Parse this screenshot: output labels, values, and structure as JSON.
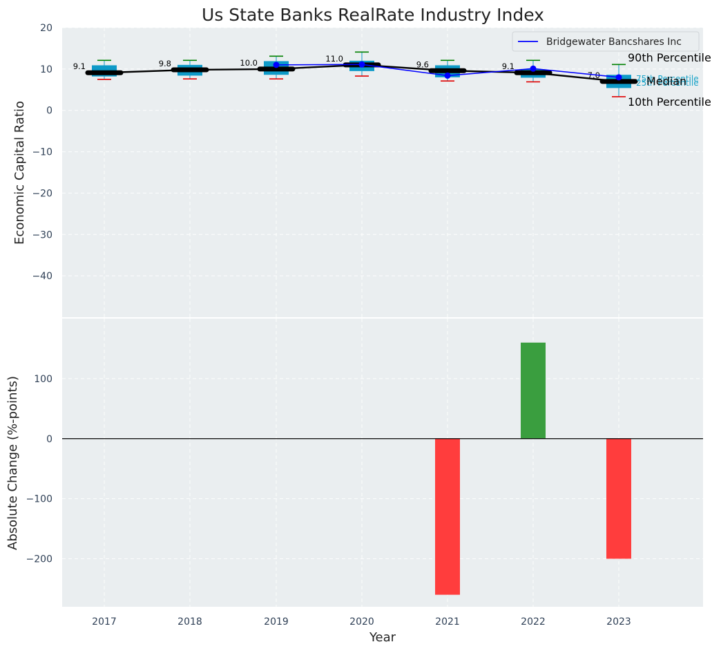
{
  "chart_data": {
    "type": "box-and-bar",
    "title": "Us State Banks RealRate Industry Index",
    "xlabel": "Year",
    "years": [
      "2017",
      "2018",
      "2019",
      "2020",
      "2021",
      "2022",
      "2023"
    ],
    "top": {
      "ylabel": "Economic Capital Ratio",
      "ylim": [
        -50,
        20
      ],
      "yticks": [
        20,
        10,
        0,
        -10,
        -20,
        -30,
        -40
      ],
      "series_industry": {
        "p10": [
          7.5,
          7.6,
          7.6,
          8.3,
          7.1,
          6.9,
          3.3
        ],
        "p25": [
          8.2,
          8.4,
          8.6,
          9.5,
          8.0,
          7.9,
          5.4
        ],
        "median": [
          9.1,
          9.8,
          10.0,
          11.0,
          9.6,
          9.1,
          7.0
        ],
        "p75": [
          10.9,
          11.0,
          11.9,
          12.0,
          10.9,
          9.9,
          8.6
        ],
        "p90": [
          12.1,
          12.1,
          13.1,
          14.1,
          12.1,
          12.1,
          11.1
        ],
        "median_labels": [
          "9.1",
          "9.8",
          "10.0",
          "11.0",
          "9.6",
          "9.1",
          "7.0"
        ]
      },
      "company": {
        "name": "Bridgewater Bancshares Inc",
        "values": [
          null,
          null,
          11.0,
          11.1,
          8.4,
          10.1,
          8.0
        ]
      },
      "annotations": {
        "p90": "90th Percentile",
        "p75": "75th Percentile",
        "median": "Median",
        "p25": "25th Percentile",
        "p10": "10th Percentile"
      }
    },
    "bottom": {
      "ylabel": "Absolute Change (%-points)",
      "ylim": [
        -280,
        200
      ],
      "yticks": [
        100,
        0,
        -100,
        -200
      ],
      "values": [
        null,
        null,
        null,
        null,
        -260,
        160,
        -200
      ],
      "colors": {
        "positive": "#3a9e3f",
        "negative": "#ff3d3d"
      }
    },
    "colors": {
      "box": "#0e9ac8",
      "median_line": "#000000",
      "company_line": "#0000ff",
      "whisker_top": "#008000",
      "whisker_bottom": "#e00000",
      "plot_bg": "#eaeef0"
    }
  }
}
